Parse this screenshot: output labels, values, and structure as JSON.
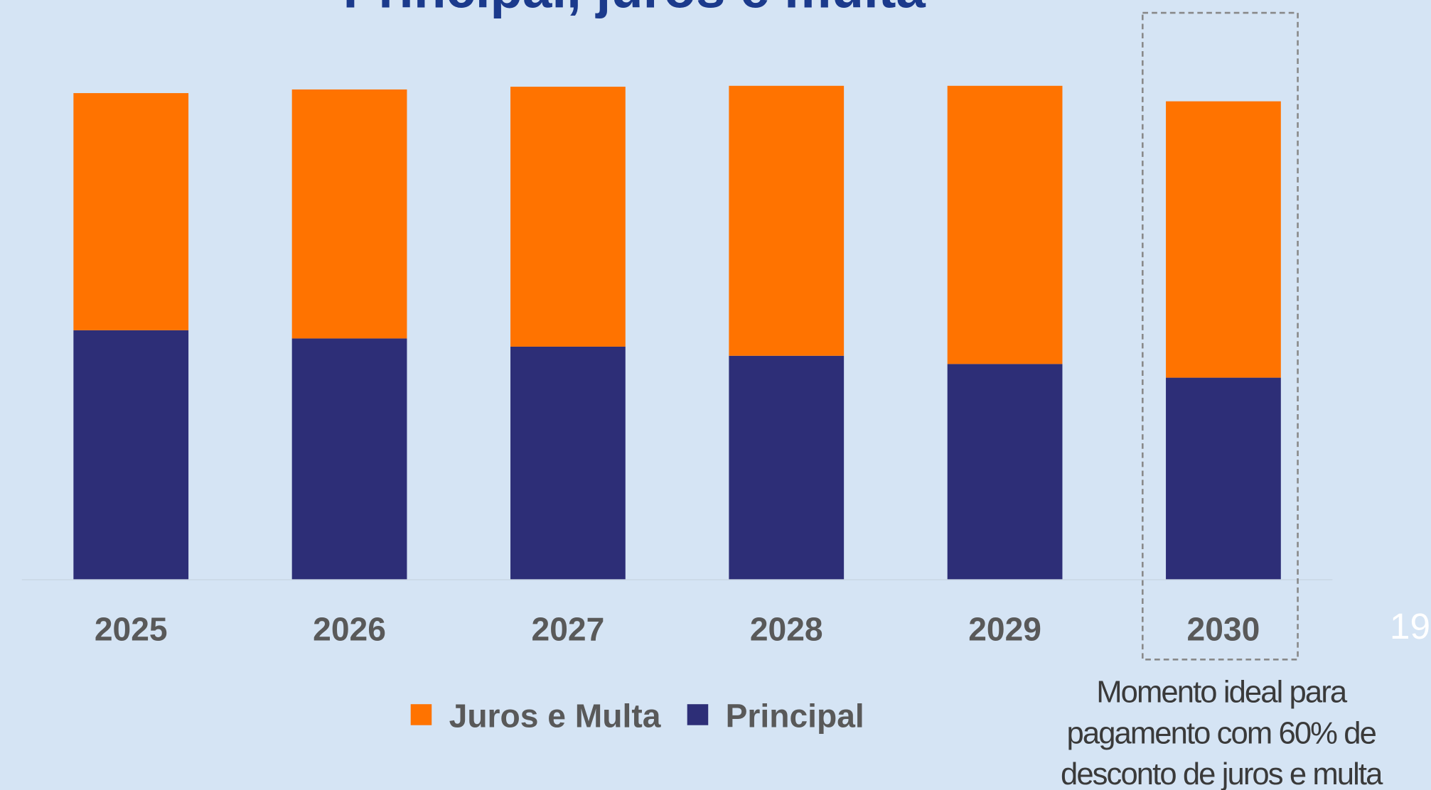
{
  "chart_data": {
    "type": "stacked_bar",
    "title": "Principal, juros e multa",
    "categories": [
      "2025",
      "2026",
      "2027",
      "2028",
      "2029",
      "2030"
    ],
    "series": [
      {
        "name": "Juros e Multa",
        "color": "#ff7300",
        "values": [
          260,
          273,
          285,
          296,
          305,
          303
        ]
      },
      {
        "name": "Principal",
        "color": "#2d2e77",
        "values": [
          273,
          264,
          255,
          245,
          236,
          221
        ]
      }
    ],
    "ylim": [
      0,
      600
    ],
    "annotation": [
      "Momento ideal para",
      "pagamento com 60% de",
      "desconto de juros e multa"
    ],
    "page_number": "19"
  }
}
